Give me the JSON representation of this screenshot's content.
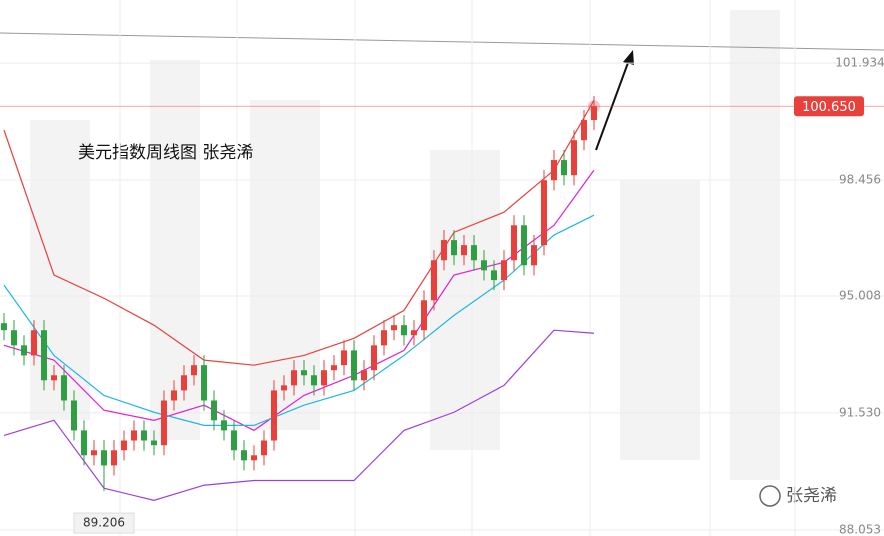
{
  "chart_data": {
    "type": "candlestick",
    "title": "美元指数周线图  张尧浠",
    "watermark": "张尧浠",
    "ylim": [
      87.87,
      103.81
    ],
    "yticks": [
      101.934,
      98.456,
      95.008,
      {
        "value": 91.53,
        "label": "91.530"
      },
      88.053
    ],
    "grid": true,
    "up_color": "#e8413c",
    "down_color": "#2ea043",
    "price_line": {
      "value": 100.65,
      "label": "100.650",
      "color": "#e8413c"
    },
    "low_annotation": {
      "index": 10,
      "value": 89.206,
      "label": "89.206"
    },
    "open": [
      94.2,
      93.99,
      93.54,
      93.24,
      93.99,
      92.5,
      92.65,
      91.9,
      91.01,
      90.27,
      90.42,
      89.97,
      90.42,
      90.71,
      91.01,
      90.71,
      90.57,
      91.9,
      92.2,
      92.65,
      92.95,
      91.9,
      91.31,
      91.01,
      90.42,
      90.12,
      90.27,
      90.71,
      92.2,
      92.35,
      92.8,
      92.65,
      92.35,
      92.8,
      92.95,
      93.39,
      92.5,
      92.8,
      93.54,
      93.99,
      94.14,
      93.84,
      93.99,
      94.88,
      96.07,
      96.67,
      96.22,
      96.52,
      96.07,
      95.77,
      95.48,
      96.07,
      97.11,
      95.92,
      96.52,
      98.45,
      99.05,
      98.6,
      99.64,
      100.24
    ],
    "high": [
      94.5,
      94.29,
      93.84,
      94.29,
      94.29,
      92.95,
      92.95,
      92.2,
      91.31,
      90.72,
      90.72,
      90.72,
      91.01,
      91.31,
      91.31,
      91.01,
      92.2,
      92.5,
      92.95,
      93.25,
      93.25,
      92.2,
      91.61,
      91.31,
      90.72,
      90.57,
      91.01,
      92.5,
      92.65,
      93.1,
      93.1,
      92.95,
      93.1,
      93.25,
      93.69,
      93.69,
      93.1,
      93.84,
      94.29,
      94.44,
      94.44,
      94.29,
      95.18,
      96.37,
      96.97,
      96.97,
      96.82,
      96.82,
      96.37,
      96.07,
      96.37,
      97.41,
      97.41,
      96.82,
      98.75,
      99.35,
      99.35,
      99.94,
      100.54,
      100.95
    ],
    "low": [
      93.69,
      93.24,
      92.94,
      92.94,
      92.2,
      92.2,
      91.6,
      90.71,
      89.97,
      89.97,
      89.206,
      89.67,
      90.12,
      90.41,
      90.41,
      90.27,
      90.27,
      91.6,
      91.9,
      92.35,
      91.6,
      91.01,
      90.71,
      90.12,
      89.82,
      89.82,
      89.97,
      90.41,
      91.9,
      92.05,
      92.35,
      92.05,
      92.05,
      92.5,
      92.65,
      92.2,
      92.2,
      92.5,
      93.24,
      93.69,
      93.54,
      93.54,
      93.69,
      94.58,
      95.77,
      95.92,
      95.92,
      95.77,
      95.47,
      95.18,
      95.18,
      95.77,
      95.62,
      95.62,
      96.22,
      98.15,
      98.3,
      98.3,
      99.34,
      99.94
    ],
    "close": [
      93.99,
      93.54,
      93.24,
      93.99,
      92.5,
      92.65,
      91.9,
      91.01,
      90.27,
      90.42,
      89.97,
      90.42,
      90.71,
      91.01,
      90.71,
      90.57,
      91.9,
      92.2,
      92.65,
      92.95,
      91.9,
      91.31,
      91.01,
      90.42,
      90.12,
      90.27,
      90.71,
      92.2,
      92.35,
      92.8,
      92.65,
      92.35,
      92.8,
      92.95,
      93.39,
      92.5,
      92.8,
      93.54,
      93.99,
      94.14,
      93.84,
      93.99,
      94.88,
      96.07,
      96.67,
      96.22,
      96.52,
      96.07,
      95.77,
      95.48,
      96.07,
      97.11,
      95.92,
      96.52,
      98.45,
      99.05,
      98.6,
      99.64,
      100.24,
      100.65
    ],
    "lines": [
      {
        "color": "#e8413c",
        "x": [
          0,
          5,
          10,
          15,
          20,
          25,
          30,
          35,
          40,
          45,
          50,
          55,
          59
        ],
        "values": [
          99.94,
          95.63,
          94.94,
          94.14,
          93.1,
          92.95,
          93.24,
          93.75,
          94.58,
          96.9,
          97.5,
          98.75,
          100.83
        ]
      },
      {
        "color": "#e020d0",
        "x": [
          0,
          5,
          10,
          15,
          20,
          25,
          30,
          35,
          40,
          45,
          50,
          55,
          59
        ],
        "values": [
          93.54,
          93.1,
          91.61,
          91.31,
          91.76,
          91.01,
          92.05,
          92.65,
          93.39,
          95.63,
          96.01,
          97.11,
          98.75
        ]
      },
      {
        "color": "#20b8e0",
        "x": [
          0,
          5,
          10,
          15,
          20,
          25,
          30,
          35,
          40,
          45,
          50,
          55,
          59
        ],
        "values": [
          95.33,
          93.24,
          92.05,
          91.55,
          91.16,
          91.16,
          91.76,
          92.2,
          93.24,
          94.43,
          95.48,
          96.82,
          97.41
        ]
      },
      {
        "color": "#9a40e0",
        "x": [
          0,
          5,
          10,
          15,
          20,
          25,
          30,
          35,
          40,
          45,
          50,
          55,
          59
        ],
        "values": [
          90.86,
          91.31,
          89.29,
          88.93,
          89.38,
          89.52,
          89.52,
          89.52,
          91.01,
          91.55,
          92.35,
          93.99,
          93.9
        ]
      }
    ]
  }
}
